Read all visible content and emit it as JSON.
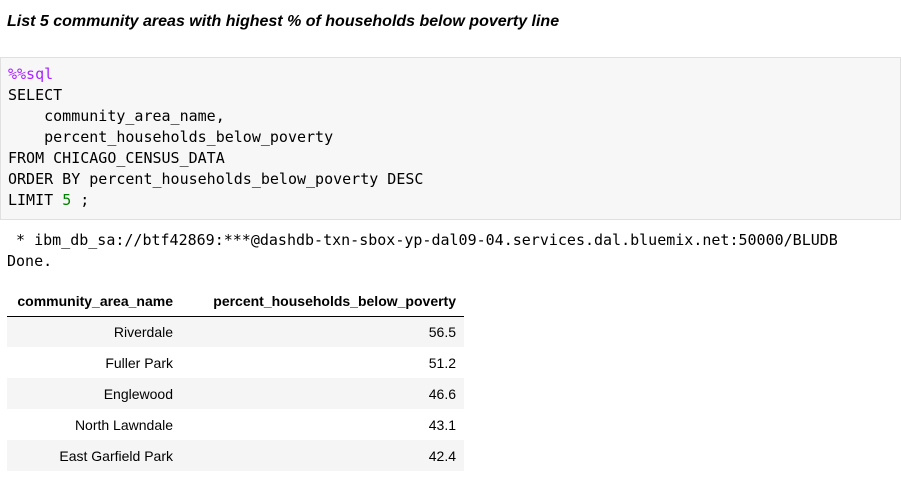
{
  "markdown": {
    "heading": "List 5 community areas with highest % of households below poverty line"
  },
  "code_cell": {
    "magic": "%%sql",
    "line_select": "SELECT",
    "line_col1": "    community_area_name,",
    "line_col2": "    percent_households_below_poverty",
    "line_from": "FROM CHICAGO_CENSUS_DATA",
    "line_order": "ORDER BY percent_households_below_poverty DESC",
    "limit_keyword": "LIMIT ",
    "limit_value": "5",
    "limit_end": " ;"
  },
  "output": {
    "connection": " * ibm_db_sa://btf42869:***@dashdb-txn-sbox-yp-dal09-04.services.dal.bluemix.net:50000/BLUDB",
    "status": "Done."
  },
  "table": {
    "headers": [
      "community_area_name",
      "percent_households_below_poverty"
    ],
    "rows": [
      [
        "Riverdale",
        "56.5"
      ],
      [
        "Fuller Park",
        "51.2"
      ],
      [
        "Englewood",
        "46.6"
      ],
      [
        "North Lawndale",
        "43.1"
      ],
      [
        "East Garfield Park",
        "42.4"
      ]
    ]
  }
}
